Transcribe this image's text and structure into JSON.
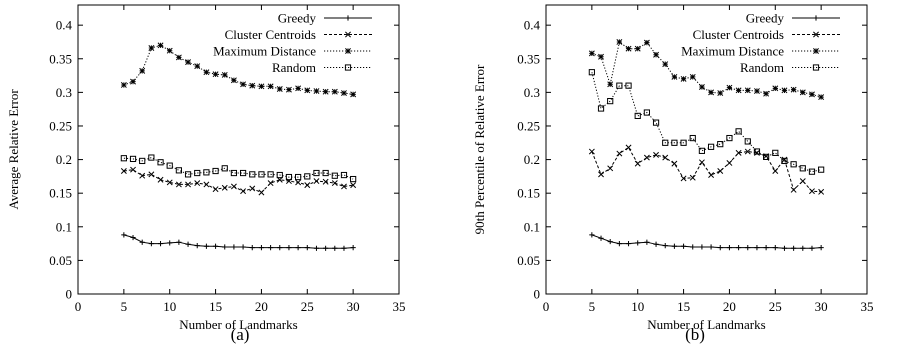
{
  "figure": {
    "captions": [
      "(a)",
      "(b)"
    ]
  },
  "chart_data": [
    {
      "type": "line",
      "panel": "(a)",
      "xlabel": "Number of Landmarks",
      "ylabel": "Average Relative Error",
      "xlim": [
        0,
        35
      ],
      "ylim": [
        0,
        0.43
      ],
      "xticks": [
        0,
        5,
        10,
        15,
        20,
        25,
        30,
        35
      ],
      "yticks": [
        0,
        0.05,
        0.1,
        0.15,
        0.2,
        0.25,
        0.3,
        0.35,
        0.4
      ],
      "ytick_labels": [
        "0",
        "0.05",
        "0.1",
        "0.15",
        "0.2",
        "0.25",
        "0.3",
        "0.35",
        "0.4"
      ],
      "grid": false,
      "legend_position": "top-right",
      "x": [
        5,
        6,
        7,
        8,
        9,
        10,
        11,
        12,
        13,
        14,
        15,
        16,
        17,
        18,
        19,
        20,
        21,
        22,
        23,
        24,
        25,
        26,
        27,
        28,
        29,
        30
      ],
      "series": [
        {
          "name": "Greedy",
          "marker": "plus",
          "dash": "solid",
          "values": [
            0.088,
            0.084,
            0.077,
            0.075,
            0.075,
            0.076,
            0.077,
            0.074,
            0.072,
            0.071,
            0.071,
            0.07,
            0.07,
            0.07,
            0.069,
            0.069,
            0.069,
            0.069,
            0.069,
            0.069,
            0.069,
            0.068,
            0.068,
            0.068,
            0.068,
            0.069
          ]
        },
        {
          "name": "Cluster Centroids",
          "marker": "x",
          "dash": "dashed",
          "values": [
            0.183,
            0.185,
            0.176,
            0.178,
            0.17,
            0.166,
            0.163,
            0.163,
            0.165,
            0.163,
            0.156,
            0.158,
            0.16,
            0.153,
            0.157,
            0.151,
            0.165,
            0.17,
            0.168,
            0.166,
            0.162,
            0.168,
            0.167,
            0.165,
            0.16,
            0.162
          ]
        },
        {
          "name": "Maximum Distance",
          "marker": "star",
          "dash": "dotted",
          "values": [
            0.311,
            0.316,
            0.332,
            0.366,
            0.37,
            0.362,
            0.352,
            0.345,
            0.339,
            0.33,
            0.327,
            0.326,
            0.318,
            0.312,
            0.31,
            0.309,
            0.309,
            0.305,
            0.304,
            0.306,
            0.303,
            0.302,
            0.301,
            0.301,
            0.299,
            0.297
          ]
        },
        {
          "name": "Random",
          "marker": "square",
          "dash": "dotted",
          "values": [
            0.202,
            0.201,
            0.198,
            0.203,
            0.196,
            0.191,
            0.184,
            0.178,
            0.18,
            0.181,
            0.183,
            0.187,
            0.18,
            0.18,
            0.178,
            0.178,
            0.178,
            0.177,
            0.174,
            0.174,
            0.175,
            0.18,
            0.18,
            0.176,
            0.177,
            0.171
          ]
        }
      ]
    },
    {
      "type": "line",
      "panel": "(b)",
      "xlabel": "Number of Landmarks",
      "ylabel": "90th Percentile of Relative Error",
      "xlim": [
        0,
        35
      ],
      "ylim": [
        0,
        0.43
      ],
      "xticks": [
        0,
        5,
        10,
        15,
        20,
        25,
        30,
        35
      ],
      "yticks": [
        0,
        0.05,
        0.1,
        0.15,
        0.2,
        0.25,
        0.3,
        0.35,
        0.4
      ],
      "ytick_labels": [
        "0",
        "0.05",
        "0.1",
        "0.15",
        "0.2",
        "0.25",
        "0.3",
        "0.35",
        "0.4"
      ],
      "grid": false,
      "legend_position": "top-right",
      "x": [
        5,
        6,
        7,
        8,
        9,
        10,
        11,
        12,
        13,
        14,
        15,
        16,
        17,
        18,
        19,
        20,
        21,
        22,
        23,
        24,
        25,
        26,
        27,
        28,
        29,
        30
      ],
      "series": [
        {
          "name": "Greedy",
          "marker": "plus",
          "dash": "solid",
          "values": [
            0.088,
            0.083,
            0.078,
            0.075,
            0.075,
            0.076,
            0.077,
            0.074,
            0.072,
            0.071,
            0.071,
            0.07,
            0.07,
            0.07,
            0.069,
            0.069,
            0.069,
            0.069,
            0.069,
            0.069,
            0.069,
            0.068,
            0.068,
            0.068,
            0.068,
            0.069
          ]
        },
        {
          "name": "Cluster Centroids",
          "marker": "x",
          "dash": "dashed",
          "values": [
            0.212,
            0.178,
            0.187,
            0.209,
            0.218,
            0.194,
            0.203,
            0.207,
            0.203,
            0.194,
            0.172,
            0.173,
            0.196,
            0.177,
            0.183,
            0.195,
            0.21,
            0.212,
            0.21,
            0.205,
            0.183,
            0.2,
            0.155,
            0.168,
            0.153,
            0.152
          ]
        },
        {
          "name": "Maximum Distance",
          "marker": "star",
          "dash": "dotted",
          "values": [
            0.358,
            0.353,
            0.312,
            0.375,
            0.365,
            0.365,
            0.374,
            0.356,
            0.342,
            0.323,
            0.32,
            0.323,
            0.308,
            0.3,
            0.299,
            0.307,
            0.303,
            0.303,
            0.302,
            0.298,
            0.306,
            0.303,
            0.304,
            0.3,
            0.297,
            0.293
          ]
        },
        {
          "name": "Random",
          "marker": "square",
          "dash": "dotted",
          "values": [
            0.33,
            0.276,
            0.287,
            0.31,
            0.31,
            0.265,
            0.27,
            0.255,
            0.225,
            0.225,
            0.225,
            0.232,
            0.213,
            0.219,
            0.223,
            0.232,
            0.242,
            0.227,
            0.212,
            0.204,
            0.21,
            0.198,
            0.193,
            0.187,
            0.182,
            0.185
          ]
        }
      ]
    }
  ]
}
